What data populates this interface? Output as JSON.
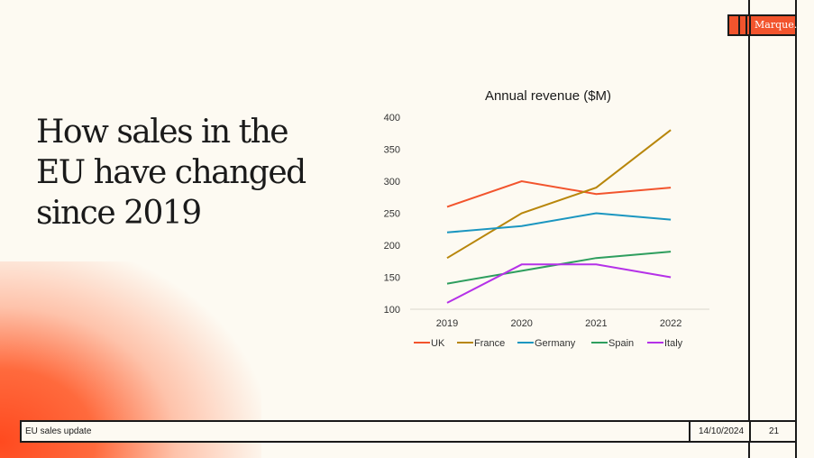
{
  "slide": {
    "title": "How sales in the EU have changed since 2019",
    "logo": "Marque.",
    "footer_label": "EU sales update",
    "date": "14/10/2024",
    "page_number": "21"
  },
  "chart_data": {
    "type": "line",
    "title": "Annual revenue ($M)",
    "categories": [
      "2019",
      "2020",
      "2021",
      "2022"
    ],
    "ylim": [
      100,
      400
    ],
    "yticks": [
      100,
      150,
      200,
      250,
      300,
      350,
      400
    ],
    "grid": false,
    "legend": "bottom",
    "series": [
      {
        "name": "UK",
        "color": "#f2542d",
        "values": [
          260,
          300,
          280,
          290
        ]
      },
      {
        "name": "France",
        "color": "#b8860b",
        "values": [
          180,
          250,
          290,
          380
        ]
      },
      {
        "name": "Germany",
        "color": "#1b96c0",
        "values": [
          220,
          230,
          250,
          240
        ]
      },
      {
        "name": "Spain",
        "color": "#2e9e5e",
        "values": [
          140,
          160,
          180,
          190
        ]
      },
      {
        "name": "Italy",
        "color": "#b531e8",
        "values": [
          110,
          170,
          170,
          150
        ]
      }
    ]
  }
}
